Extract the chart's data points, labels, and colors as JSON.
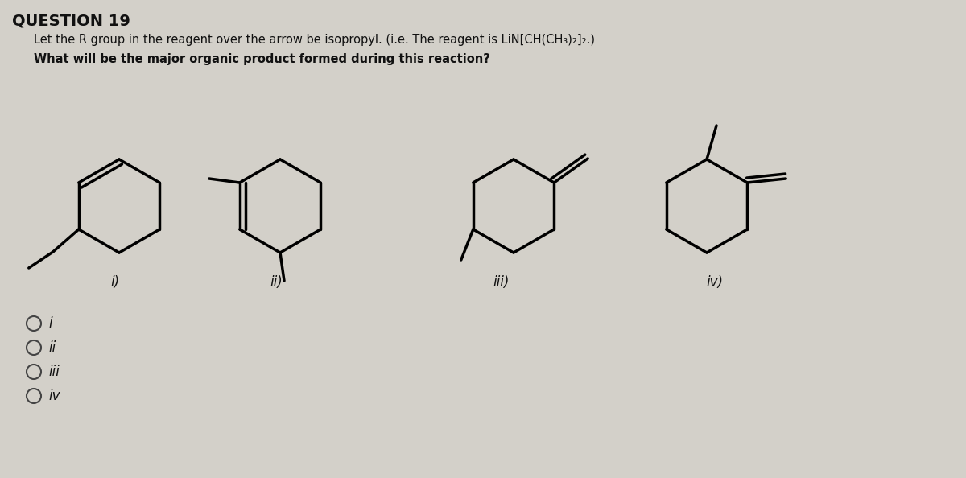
{
  "title": "QUESTION 19",
  "line1": "Let the R group in the reagent over the arrow be isopropyl. (i.e. The reagent is LiN[CH(CH₃)₂]₂.)",
  "line2": "What will be the major organic product formed during this reaction?",
  "labels": [
    "i)",
    "ii)",
    "iii)",
    "iv)"
  ],
  "radio_labels": [
    "i",
    "ii",
    "iii",
    "iv"
  ],
  "bg_color": "#d3d0c9",
  "text_color": "#111111",
  "lw": 2.5
}
